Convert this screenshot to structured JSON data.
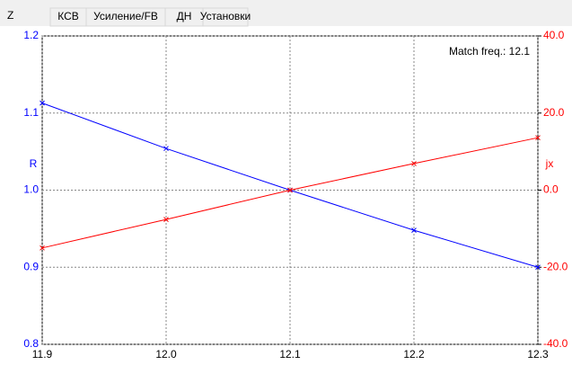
{
  "tabs": {
    "label": "Z",
    "items": [
      "КСВ",
      "Усиление/FB",
      "ДН",
      "Установки"
    ]
  },
  "chart_data": {
    "type": "line",
    "annotation": "Match freq.: 12.1",
    "ylabel": "R",
    "y2label": "jx",
    "x": [
      11.9,
      12.0,
      12.1,
      12.2,
      12.3
    ],
    "xlim": [
      11.9,
      12.3
    ],
    "xticks": [
      11.9,
      {
        "value": 12,
        "label": "12.0"
      },
      12.1,
      12.2,
      12.3
    ],
    "ylim": [
      0.8,
      1.2
    ],
    "yticks": [
      0.8,
      0.9,
      {
        "value": 1,
        "label": "1.0"
      },
      1.1,
      1.2
    ],
    "y2lim": [
      -40,
      40
    ],
    "y2ticks": [
      {
        "value": -40,
        "label": "-40.0"
      },
      {
        "value": -20,
        "label": "-20.0"
      },
      {
        "value": 0,
        "label": "0.0"
      },
      {
        "value": 20,
        "label": "20.0"
      },
      {
        "value": 40,
        "label": "40.0"
      }
    ],
    "grid": true,
    "series": [
      {
        "name": "R",
        "color": "#0000ff",
        "axis": "y",
        "values": [
          1.113,
          1.054,
          1.0,
          0.948,
          0.9
        ]
      },
      {
        "name": "jx",
        "color": "#ff0000",
        "axis": "y2",
        "values": [
          -15.0,
          -7.6,
          0.0,
          6.9,
          13.6
        ]
      }
    ]
  }
}
